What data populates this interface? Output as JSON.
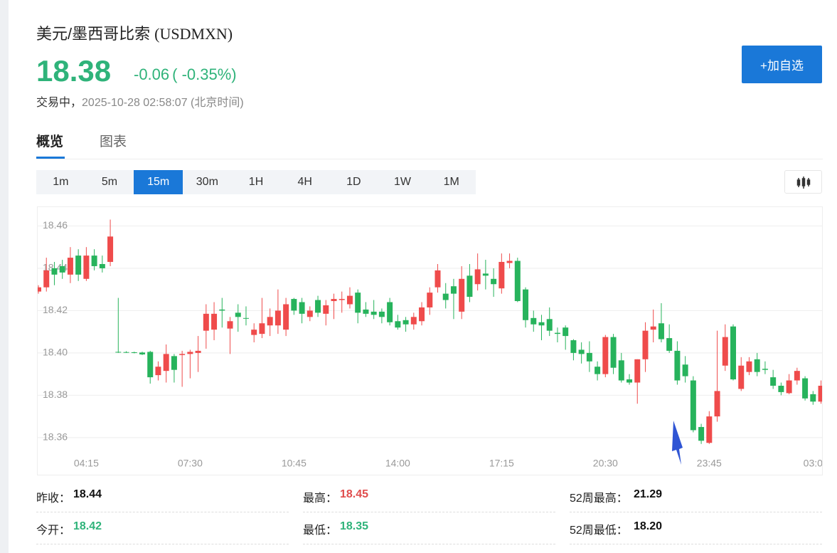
{
  "header": {
    "title": "美元/墨西哥比索",
    "code": "(USDMXN)",
    "price": "18.38",
    "change": "-0.06",
    "change_pct": "( -0.35%)",
    "status": "交易中，",
    "time": "2025-10-28 02:58:07",
    "timezone": "(北京时间)",
    "button": "+加自选"
  },
  "tabs": [
    "概览",
    "图表"
  ],
  "intervals": [
    "1m",
    "5m",
    "15m",
    "30m",
    "1H",
    "4H",
    "1D",
    "1W",
    "1M"
  ],
  "chart_data": {
    "type": "candlestick",
    "up_color": "#ef4b4b",
    "down_color": "#27b35c",
    "grid": true,
    "categories": [
      null,
      null,
      null,
      null,
      null,
      null,
      "04:15",
      null,
      null,
      null,
      null,
      null,
      null,
      null,
      null,
      null,
      null,
      null,
      null,
      "07:30",
      null,
      null,
      null,
      null,
      null,
      null,
      null,
      null,
      null,
      null,
      null,
      null,
      "10:45",
      null,
      null,
      null,
      null,
      null,
      null,
      null,
      null,
      null,
      null,
      null,
      null,
      "14:00",
      null,
      null,
      null,
      null,
      null,
      null,
      null,
      null,
      null,
      null,
      null,
      null,
      "17:15",
      null,
      null,
      null,
      null,
      null,
      null,
      null,
      null,
      null,
      null,
      null,
      null,
      "20:30",
      null,
      null,
      null,
      null,
      null,
      null,
      null,
      null,
      null,
      null,
      null,
      null,
      "23:45",
      null,
      null,
      null,
      null,
      null,
      null,
      null,
      null,
      null,
      null,
      null,
      null,
      "03:0",
      null
    ],
    "open": [
      18.429,
      18.431,
      18.44,
      18.441,
      18.437,
      18.446,
      18.435,
      18.446,
      18.442,
      18.443,
      18.4005,
      18.4004,
      18.4003,
      18.4002,
      18.4005,
      18.3895,
      18.3915,
      18.3985,
      18.399,
      18.3995,
      18.4,
      18.4105,
      18.411,
      18.4205,
      18.4115,
      18.419,
      18.4165,
      18.4085,
      18.409,
      18.413,
      18.413,
      18.411,
      18.4255,
      18.424,
      18.417,
      18.425,
      18.4185,
      18.4245,
      18.425,
      18.423,
      18.4285,
      18.4205,
      18.4195,
      18.4195,
      18.424,
      18.415,
      18.4155,
      18.4135,
      18.415,
      18.4215,
      18.431,
      18.428,
      18.4315,
      18.4195,
      18.4365,
      18.4325,
      18.4375,
      18.435,
      18.4305,
      18.4425,
      18.4435,
      18.43,
      18.4165,
      18.4145,
      18.416,
      18.4095,
      18.412,
      18.406,
      18.4015,
      18.4,
      18.3935,
      18.39,
      18.4075,
      18.3965,
      18.3875,
      18.386,
      18.397,
      18.411,
      18.414,
      18.407,
      18.401,
      18.3945,
      18.387,
      18.365,
      18.3575,
      18.37,
      18.394,
      18.4125,
      18.383,
      18.391,
      18.397,
      18.3925,
      18.3885,
      18.3845,
      18.381,
      18.387,
      18.388,
      18.3805,
      18.377
    ],
    "high": [
      18.432,
      18.445,
      18.443,
      18.444,
      18.45,
      18.449,
      18.45,
      18.449,
      18.446,
      18.463,
      18.426,
      18.4008,
      18.4006,
      18.4006,
      18.401,
      18.396,
      18.404,
      18.3995,
      18.401,
      18.4015,
      18.408,
      18.423,
      18.424,
      18.426,
      18.417,
      18.423,
      18.422,
      18.414,
      18.426,
      18.421,
      18.43,
      18.426,
      18.426,
      18.426,
      18.422,
      18.427,
      18.425,
      18.428,
      18.429,
      18.431,
      18.43,
      18.424,
      18.425,
      18.421,
      18.426,
      18.418,
      18.417,
      18.419,
      18.424,
      18.431,
      18.442,
      18.433,
      18.435,
      18.441,
      18.442,
      18.447,
      18.444,
      18.44,
      18.447,
      18.447,
      18.445,
      18.431,
      18.42,
      18.418,
      18.4215,
      18.412,
      18.413,
      18.4065,
      18.405,
      18.4055,
      18.396,
      18.4085,
      18.409,
      18.4,
      18.39,
      18.397,
      18.4145,
      18.4205,
      18.4235,
      18.4135,
      18.4055,
      18.3985,
      18.389,
      18.3665,
      18.3725,
      18.4105,
      18.4135,
      18.4135,
      18.398,
      18.398,
      18.4,
      18.396,
      18.392,
      18.386,
      18.39,
      18.393,
      18.389,
      18.382,
      18.387
    ],
    "low": [
      18.428,
      18.429,
      18.432,
      18.435,
      18.433,
      18.434,
      18.434,
      18.439,
      18.438,
      18.441,
      18.4,
      18.4,
      18.3998,
      18.399,
      18.3855,
      18.387,
      18.386,
      18.386,
      18.384,
      18.388,
      18.391,
      18.402,
      18.406,
      18.412,
      18.3995,
      18.41,
      18.413,
      18.405,
      18.407,
      18.408,
      18.409,
      18.408,
      18.418,
      18.414,
      18.415,
      18.417,
      18.413,
      18.416,
      18.419,
      18.421,
      18.414,
      18.417,
      18.416,
      18.414,
      18.413,
      18.411,
      18.41,
      18.411,
      18.413,
      18.418,
      18.4285,
      18.421,
      18.416,
      18.416,
      18.424,
      18.4295,
      18.43,
      18.4265,
      18.428,
      18.44,
      18.424,
      18.412,
      18.41,
      18.406,
      18.408,
      18.405,
      18.4015,
      18.3965,
      18.395,
      18.391,
      18.387,
      18.3885,
      18.39,
      18.386,
      18.385,
      18.376,
      18.391,
      18.405,
      18.405,
      18.4,
      18.385,
      18.386,
      18.3625,
      18.357,
      18.357,
      18.3675,
      18.3915,
      18.387,
      18.382,
      18.3895,
      18.389,
      18.39,
      18.383,
      18.38,
      18.3805,
      18.385,
      18.3775,
      18.3755,
      18.376
    ],
    "close": [
      18.431,
      18.439,
      18.437,
      18.438,
      18.445,
      18.437,
      18.446,
      18.441,
      18.44,
      18.455,
      18.4003,
      18.4002,
      18.4,
      18.3993,
      18.3885,
      18.3935,
      18.3995,
      18.392,
      18.3995,
      18.4005,
      18.401,
      18.4185,
      18.4185,
      18.42,
      18.415,
      18.417,
      18.4162,
      18.411,
      18.414,
      18.417,
      18.42,
      18.423,
      18.42,
      18.4185,
      18.42,
      18.419,
      18.4225,
      18.4255,
      18.4255,
      18.427,
      18.419,
      18.4185,
      18.418,
      18.417,
      18.4145,
      18.412,
      18.4135,
      18.417,
      18.4215,
      18.4285,
      18.439,
      18.425,
      18.428,
      18.435,
      18.4265,
      18.4395,
      18.4365,
      18.4325,
      18.443,
      18.4435,
      18.4245,
      18.4155,
      18.4135,
      18.413,
      18.4105,
      18.409,
      18.408,
      18.4,
      18.3995,
      18.396,
      18.39,
      18.4075,
      18.393,
      18.387,
      18.386,
      18.397,
      18.4105,
      18.4125,
      18.4065,
      18.401,
      18.387,
      18.389,
      18.3635,
      18.3585,
      18.37,
      18.382,
      18.4075,
      18.3875,
      18.394,
      18.396,
      18.391,
      18.392,
      18.3845,
      18.3815,
      18.387,
      18.3915,
      18.3785,
      18.377,
      18.3845
    ],
    "ylim": [
      18.3512,
      18.4689
    ],
    "yticks": [
      18.36,
      18.38,
      {
        "value": 18.4,
        "label": "18.40"
      },
      18.42,
      18.44,
      18.46
    ]
  },
  "stats": [
    [
      {
        "label": "昨收：",
        "value": "18.44"
      },
      {
        "label": "最高：",
        "value": "18.45"
      },
      {
        "label": "52周最高：",
        "value": "21.29"
      }
    ],
    [
      {
        "label": "今开：",
        "value": "18.42"
      },
      {
        "label": "最低：",
        "value": "18.35"
      },
      {
        "label": "52周最低：",
        "value": "18.20"
      }
    ]
  ]
}
